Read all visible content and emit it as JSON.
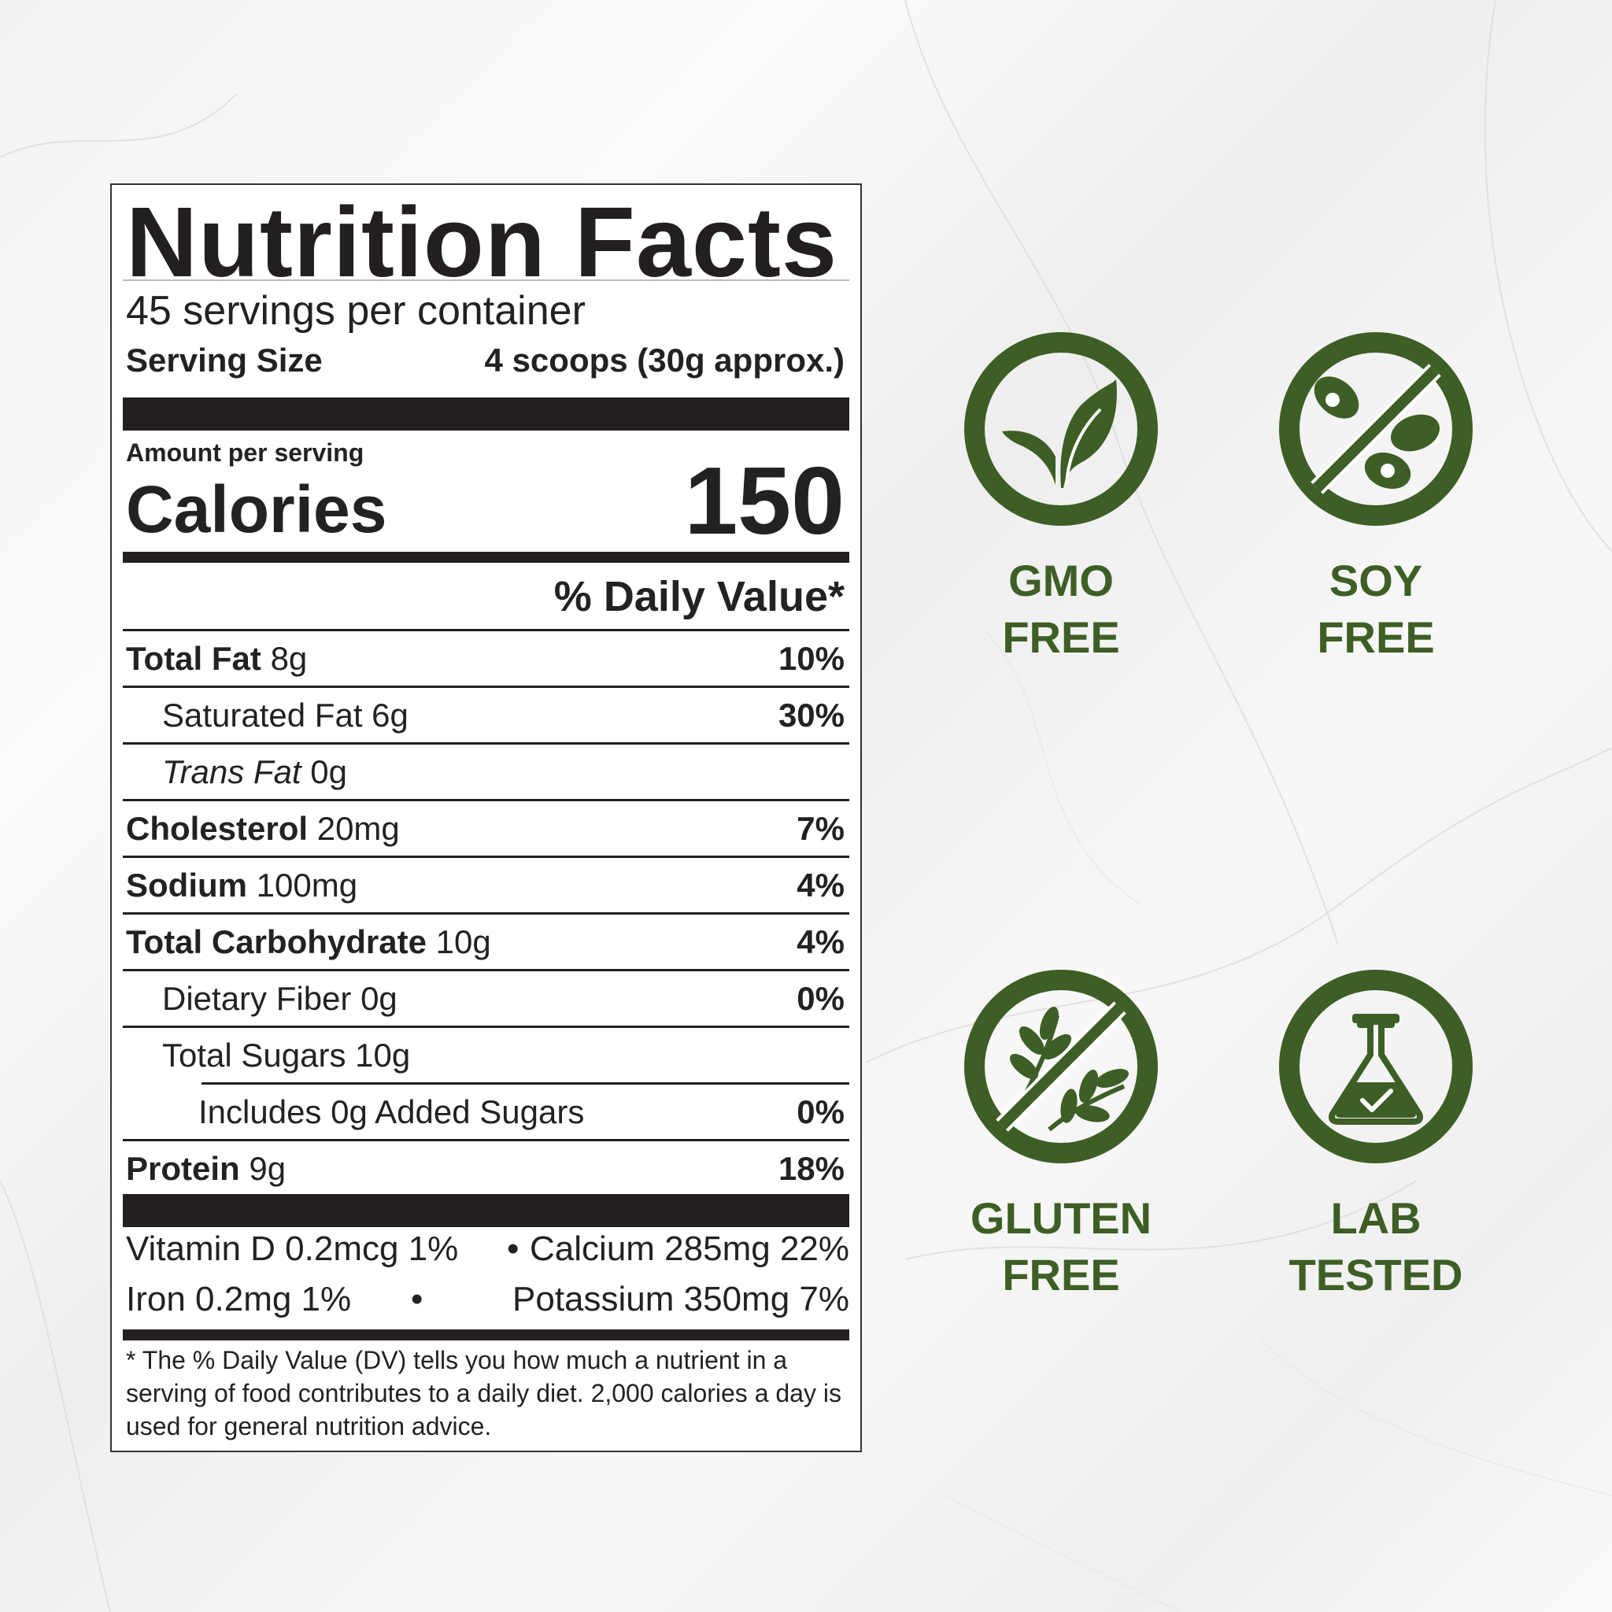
{
  "label": {
    "title": "Nutrition Facts",
    "servings_per_container": "45 servings per container",
    "serving_size_label": "Serving Size",
    "serving_size_value": "4 scoops (30g approx.)",
    "amount_per_serving": "Amount per serving",
    "calories_label": "Calories",
    "calories_value": "150",
    "daily_value_header": "% Daily Value*",
    "nutrients": [
      {
        "name": "Total Fat",
        "amount": "8g",
        "dv": "10%"
      },
      {
        "name": "Saturated Fat",
        "amount": "6g",
        "dv": "30%"
      },
      {
        "name": "Trans Fat",
        "amount": "0g",
        "dv": ""
      },
      {
        "name": "Cholesterol",
        "amount": "20mg",
        "dv": "7%"
      },
      {
        "name": "Sodium",
        "amount": "100mg",
        "dv": "4%"
      },
      {
        "name": "Total Carbohydrate",
        "amount": "10g",
        "dv": "4%"
      },
      {
        "name": "Dietary Fiber",
        "amount": "0g",
        "dv": "0%"
      },
      {
        "name": "Total Sugars",
        "amount": "10g",
        "dv": ""
      },
      {
        "name": "Includes 0g Added Sugars",
        "amount": "",
        "dv": "0%"
      },
      {
        "name": "Protein",
        "amount": "9g",
        "dv": "18%"
      }
    ],
    "vitamins_line_1_left": "Vitamin D 0.2mcg 1%",
    "vitamins_line_1_right": "Calcium 285mg 22%",
    "vitamins_line_2_left": "Iron 0.2mg 1%",
    "vitamins_line_2_right": "Potassium 350mg 7%",
    "separator": "•",
    "footnote": "* The % Daily Value (DV) tells you how much a nutrient in a serving of food contributes to a daily diet. 2,000 calories a day is used for general nutrition advice."
  },
  "badges": [
    {
      "icon": "leaf-icon",
      "line1": "GMO",
      "line2": "FREE"
    },
    {
      "icon": "soy-free-icon",
      "line1": "SOY",
      "line2": "FREE"
    },
    {
      "icon": "gluten-free-icon",
      "line1": "GLUTEN",
      "line2": "FREE"
    },
    {
      "icon": "lab-flask-icon",
      "line1": "LAB",
      "line2": "TESTED"
    }
  ],
  "colors": {
    "badge_green": "#3d5e24",
    "label_ink": "#231f20"
  }
}
